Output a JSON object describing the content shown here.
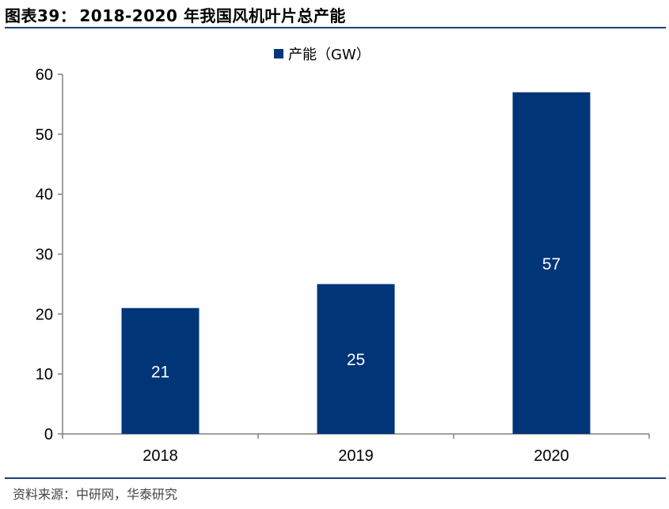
{
  "figure": {
    "label": "图表39：",
    "title": "2018-2020 年我国风机叶片总产能",
    "source": "资料来源：中研网，华泰研究"
  },
  "colors": {
    "bar": "#003578",
    "axis": "#808080",
    "rule": "#1f3f78"
  },
  "chart_data": {
    "type": "bar",
    "categories": [
      "2018",
      "2019",
      "2020"
    ],
    "series": [
      {
        "name": "产能（GW）",
        "values": [
          21,
          25,
          57
        ]
      }
    ],
    "data_labels": [
      "21",
      "25",
      "57"
    ],
    "y_ticks": [
      "0",
      "10",
      "20",
      "30",
      "40",
      "50",
      "60"
    ],
    "ylim": [
      0,
      60
    ],
    "xlabel": "",
    "ylabel": "",
    "grid": false,
    "legend_position": "top-center"
  }
}
